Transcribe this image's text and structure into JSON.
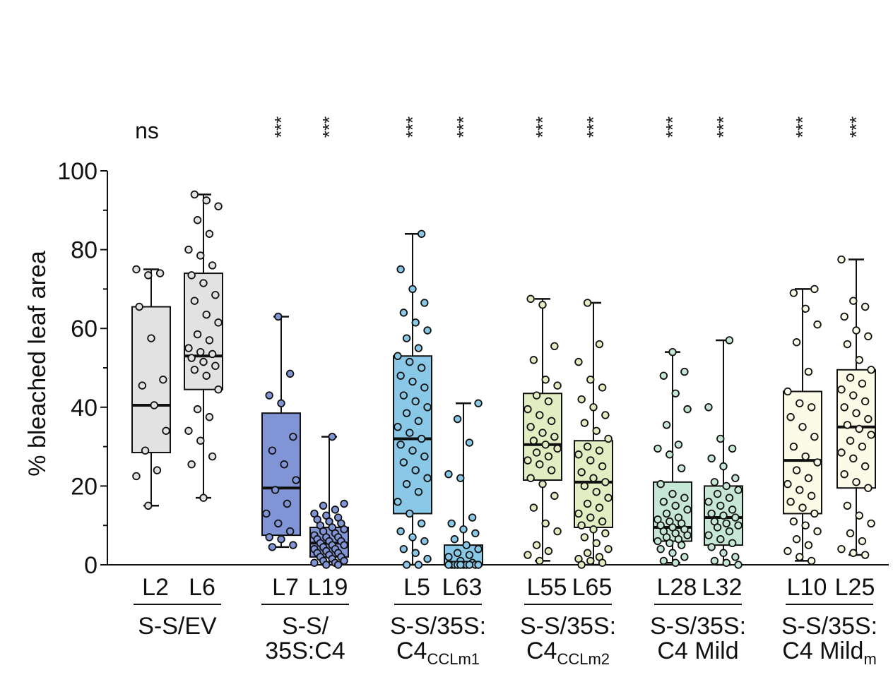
{
  "chart_data": {
    "type": "box",
    "title": "",
    "xlabel": "",
    "ylabel": "% bleached leaf area",
    "ylim": [
      0,
      100
    ],
    "yticks": [
      0,
      20,
      40,
      60,
      80,
      100
    ],
    "grid": false,
    "boxes": [
      {
        "line": "L2",
        "sig": "ns",
        "color": "#e2e2e2",
        "q1": 28.5,
        "median": 40.5,
        "q3": 65.5,
        "min": 15,
        "max": 75,
        "points": [
          75,
          73.5,
          74,
          65.5,
          57.5,
          47,
          45.5,
          40.5,
          34,
          29,
          24,
          22.5,
          15
        ]
      },
      {
        "line": "L6",
        "sig": "",
        "color": "#e2e2e2",
        "q1": 44.5,
        "median": 53,
        "q3": 74,
        "min": 17,
        "max": 94,
        "points": [
          94,
          92.5,
          91,
          87.5,
          84,
          80,
          78.5,
          76,
          73.5,
          71.5,
          68.5,
          67,
          63.5,
          61.5,
          58.5,
          57,
          55,
          54,
          53.5,
          52.5,
          51.5,
          50.5,
          49.5,
          48,
          44.5,
          39.5,
          37.5,
          34,
          31.5,
          27.5,
          25.5,
          17
        ]
      },
      {
        "line": "L7",
        "sig": "***",
        "color": "#8094d6",
        "q1": 7.5,
        "median": 19.5,
        "q3": 38.5,
        "min": 4.5,
        "max": 63,
        "points": [
          63,
          48.5,
          43,
          41,
          32.5,
          29,
          25.5,
          21.5,
          19,
          15.5,
          13,
          10.5,
          8.5,
          7,
          6.5,
          5,
          4.5
        ]
      },
      {
        "line": "L19",
        "sig": "***",
        "color": "#8094d6",
        "q1": 2,
        "median": 5.5,
        "q3": 9.5,
        "min": 0,
        "max": 32.5,
        "points": [
          32.5,
          15.5,
          15,
          14,
          13,
          12.5,
          12,
          11.5,
          11,
          10.5,
          10,
          9.5,
          9,
          8.5,
          8,
          7.5,
          7,
          7,
          6.5,
          6,
          6,
          5.5,
          5,
          5,
          4.5,
          4,
          4,
          3.5,
          3,
          3,
          2.5,
          2,
          2,
          1.5,
          1,
          1,
          0.5,
          0.5,
          0,
          0
        ]
      },
      {
        "line": "L5",
        "sig": "***",
        "color": "#89c8e6",
        "q1": 13,
        "median": 32,
        "q3": 53,
        "min": 0,
        "max": 84,
        "points": [
          84,
          75,
          70,
          66.5,
          64,
          61.5,
          59.5,
          57.5,
          55,
          53,
          51.5,
          50,
          48,
          46.5,
          45,
          43,
          41.5,
          40,
          38.5,
          36.5,
          35,
          33.5,
          32,
          30.5,
          29,
          27.5,
          26,
          24,
          22,
          20.5,
          18.5,
          16,
          13,
          10.5,
          8.5,
          7,
          6,
          4,
          3,
          1.5,
          0,
          0
        ]
      },
      {
        "line": "L63",
        "sig": "***",
        "color": "#89c8e6",
        "q1": 0,
        "median": 0,
        "q3": 5,
        "min": 0,
        "max": 41,
        "points": [
          41,
          37,
          31,
          23,
          22,
          12,
          10.5,
          9,
          8,
          6.5,
          5,
          4,
          3,
          2.5,
          2,
          1,
          0.5,
          0,
          0,
          0,
          0,
          0,
          0,
          0,
          0,
          0,
          0
        ]
      },
      {
        "line": "L55",
        "sig": "***",
        "color": "#e2edc2",
        "q1": 21.5,
        "median": 30.5,
        "q3": 43.5,
        "min": 1,
        "max": 67.5,
        "points": [
          67.5,
          66,
          55.5,
          52,
          47,
          45.5,
          43,
          41.5,
          39.5,
          38,
          36.5,
          35,
          33.5,
          32.5,
          31.5,
          30.5,
          29.5,
          28.5,
          27.5,
          26.5,
          25.5,
          24,
          22,
          20.5,
          17.5,
          14.5,
          10.5,
          8.5,
          5,
          3.5,
          2.5,
          1
        ]
      },
      {
        "line": "L65",
        "sig": "***",
        "color": "#e2edc2",
        "q1": 9.5,
        "median": 21,
        "q3": 31.5,
        "min": 0,
        "max": 66.5,
        "points": [
          66.5,
          56,
          51.5,
          47,
          45,
          42,
          40,
          38,
          36,
          34,
          32,
          30,
          29,
          28,
          26.5,
          25,
          23.5,
          22,
          21,
          20,
          18.5,
          17,
          15.5,
          14.5,
          13,
          12,
          11,
          10,
          9,
          8,
          7,
          5.5,
          4,
          3,
          2,
          1.5,
          1,
          0.5,
          0
        ]
      },
      {
        "line": "L28",
        "sig": "***",
        "color": "#c6e6d6",
        "q1": 6,
        "median": 9.5,
        "q3": 21,
        "min": 0.5,
        "max": 54,
        "points": [
          54,
          49,
          48,
          43.5,
          39.5,
          35.5,
          30.5,
          29.5,
          28,
          24.5,
          20.5,
          18,
          17,
          16,
          15,
          14,
          13,
          12,
          11.5,
          11,
          10.5,
          10,
          9.5,
          9,
          8.5,
          8,
          7.5,
          7,
          6.5,
          6,
          5.5,
          5,
          4,
          3,
          2,
          1,
          0.5
        ]
      },
      {
        "line": "L32",
        "sig": "***",
        "color": "#c6e6d6",
        "q1": 5,
        "median": 12,
        "q3": 20,
        "min": 0,
        "max": 57,
        "points": [
          57,
          40,
          32,
          29.5,
          27,
          25,
          22,
          21,
          20,
          19,
          18,
          17,
          16,
          15,
          14,
          13,
          12.5,
          12,
          11,
          10.5,
          10,
          9.5,
          8.5,
          7.5,
          6.5,
          5.5,
          4.5,
          3,
          2,
          1,
          0.5,
          0
        ]
      },
      {
        "line": "L10",
        "sig": "***",
        "color": "#fbfbe8",
        "q1": 13,
        "median": 26.5,
        "q3": 44,
        "min": 1,
        "max": 70,
        "points": [
          70,
          69,
          65,
          61,
          56.5,
          49,
          44,
          41,
          40,
          37.5,
          35,
          32.5,
          30,
          27.5,
          26,
          24,
          22,
          20.5,
          19,
          17.5,
          16,
          14.5,
          13,
          11,
          10,
          8.5,
          6.5,
          5,
          3.5,
          2,
          1
        ]
      },
      {
        "line": "L25",
        "sig": "***",
        "color": "#fbfbe8",
        "q1": 19.5,
        "median": 35,
        "q3": 49.5,
        "min": 2.5,
        "max": 77.5,
        "points": [
          77.5,
          67,
          65.5,
          63,
          59.5,
          58,
          56,
          52,
          49.5,
          47.5,
          46,
          44.5,
          43,
          41.5,
          40,
          38.5,
          37,
          35.5,
          34.5,
          33,
          31.5,
          30,
          28.5,
          27,
          25,
          23,
          21,
          19.5,
          15,
          12.5,
          10.5,
          8,
          6,
          4,
          3,
          2.5
        ]
      }
    ],
    "groups": [
      {
        "lines": [
          "L2",
          "L6"
        ],
        "label_line1": "S-S/EV",
        "label_line2": ""
      },
      {
        "lines": [
          "L7",
          "L19"
        ],
        "label_line1": "S-S/",
        "label_line2": "35S:C4"
      },
      {
        "lines": [
          "L5",
          "L63"
        ],
        "label_line1": "S-S/35S:",
        "label_line2_main": "C4",
        "label_line2_sub": "CCLm1"
      },
      {
        "lines": [
          "L55",
          "L65"
        ],
        "label_line1": "S-S/35S:",
        "label_line2_main": "C4",
        "label_line2_sub": "CCLm2"
      },
      {
        "lines": [
          "L28",
          "L32"
        ],
        "label_line1": "S-S/35S:",
        "label_line2": "C4 Mild"
      },
      {
        "lines": [
          "L10",
          "L25"
        ],
        "label_line1": "S-S/35S:",
        "label_line2_main": "C4 Mild",
        "label_line2_sub": "m"
      }
    ]
  }
}
